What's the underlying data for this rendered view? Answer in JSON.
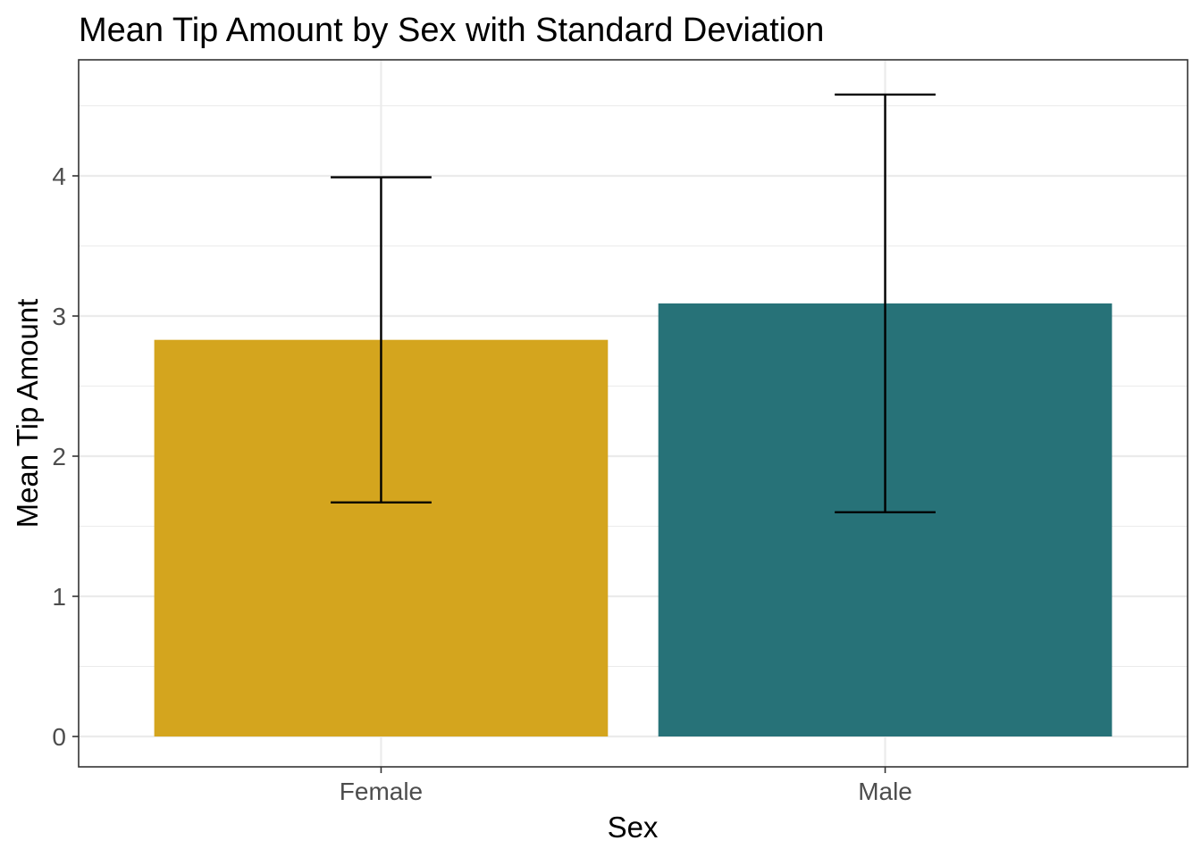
{
  "chart_data": {
    "type": "bar",
    "title": "Mean Tip Amount by Sex with Standard Deviation",
    "xlabel": "Sex",
    "ylabel": "Mean Tip Amount",
    "categories": [
      "Female",
      "Male"
    ],
    "values": [
      2.83,
      3.09
    ],
    "error_low": [
      1.67,
      1.6
    ],
    "error_high": [
      3.99,
      4.58
    ],
    "colors": [
      "#D4A51E",
      "#277278"
    ],
    "ylim": [
      -0.22,
      4.83
    ],
    "yticks": [
      0,
      1,
      2,
      3,
      4
    ],
    "ytick_labels": [
      "0",
      "1",
      "2",
      "3",
      "4"
    ],
    "grid": true,
    "legend": "none"
  }
}
